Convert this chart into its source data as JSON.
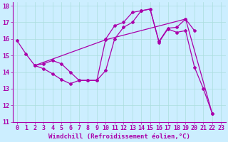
{
  "xlabel": "Windchill (Refroidissement éolien,°C)",
  "background_color": "#cceeff",
  "line_color": "#aa00aa",
  "grid_color": "#aadddd",
  "xlim": [
    -0.5,
    23.5
  ],
  "ylim": [
    11,
    18.2
  ],
  "xticks": [
    0,
    1,
    2,
    3,
    4,
    5,
    6,
    7,
    8,
    9,
    10,
    11,
    12,
    13,
    14,
    15,
    16,
    17,
    18,
    19,
    20,
    21,
    22,
    23
  ],
  "yticks": [
    11,
    12,
    13,
    14,
    15,
    16,
    17,
    18
  ],
  "line1_x": [
    0,
    1,
    2,
    3,
    4,
    5,
    6,
    7,
    8,
    9,
    10,
    11,
    12,
    13,
    14,
    15,
    16,
    17,
    18,
    19,
    20,
    21,
    22
  ],
  "line1_y": [
    15.9,
    15.1,
    14.4,
    14.2,
    13.9,
    13.55,
    13.3,
    13.5,
    13.5,
    13.5,
    14.1,
    16.0,
    16.7,
    17.0,
    17.7,
    17.8,
    15.8,
    16.6,
    16.4,
    16.5,
    14.3,
    13.0,
    11.5
  ],
  "line2_x": [
    2,
    3,
    4,
    5,
    6,
    7,
    8,
    9,
    10,
    11,
    12,
    13,
    14,
    15,
    16,
    17,
    18,
    19,
    20
  ],
  "line2_y": [
    14.4,
    14.5,
    14.7,
    14.5,
    14.0,
    13.5,
    13.5,
    13.5,
    16.0,
    16.8,
    17.0,
    17.6,
    17.7,
    17.8,
    15.85,
    16.65,
    16.7,
    17.2,
    16.5
  ],
  "line3_x": [
    2,
    10,
    19,
    22
  ],
  "line3_y": [
    14.4,
    15.95,
    17.2,
    11.5
  ],
  "xlabel_fontsize": 6.5,
  "tick_fontsize": 6,
  "linewidth": 0.9,
  "markersize": 2.0
}
